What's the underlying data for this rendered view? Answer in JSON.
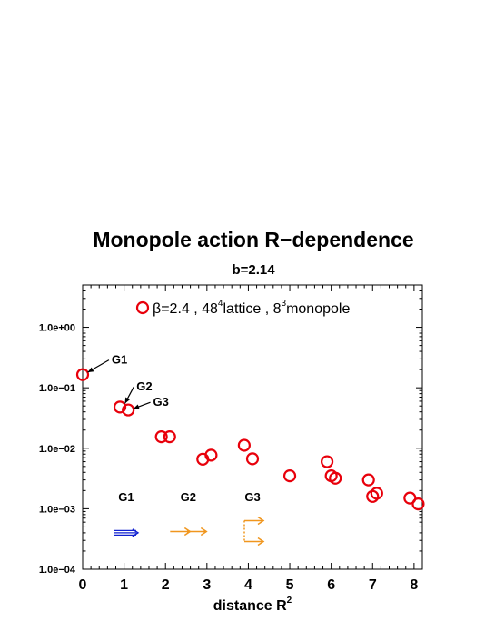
{
  "chart_data": {
    "type": "scatter",
    "title": "Monopole action R−dependence",
    "subtitle": "b=2.14",
    "xlabel": "distance R",
    "xlabel_sup": "2",
    "ylabel": "",
    "x_scale": "linear",
    "y_scale": "log",
    "xlim": [
      0,
      8.2
    ],
    "ylim": [
      0.0001,
      5
    ],
    "x_ticks": [
      0,
      1,
      2,
      3,
      4,
      5,
      6,
      7,
      8
    ],
    "x_tick_labels": [
      "0",
      "1",
      "2",
      "3",
      "4",
      "5",
      "6",
      "7",
      "8"
    ],
    "y_ticks": [
      0.0001,
      0.001,
      0.01,
      0.1,
      1
    ],
    "y_tick_labels": [
      "1.0e−04",
      "1.0e−03",
      "1.0e−02",
      "1.0e−01",
      "1.0e+00"
    ],
    "grid": false,
    "legend": {
      "position": "top",
      "parts": [
        "β=2.4 , 48",
        "4",
        "lattice , 8",
        "3",
        "monopole"
      ]
    },
    "series": [
      {
        "marker": "open-circle",
        "color": "#e8000b",
        "points": [
          {
            "x": 0.0,
            "y": 0.165
          },
          {
            "x": 0.9,
            "y": 0.048
          },
          {
            "x": 1.1,
            "y": 0.043
          },
          {
            "x": 1.9,
            "y": 0.0155
          },
          {
            "x": 2.1,
            "y": 0.0155
          },
          {
            "x": 2.9,
            "y": 0.0066
          },
          {
            "x": 3.1,
            "y": 0.0077
          },
          {
            "x": 3.9,
            "y": 0.0112
          },
          {
            "x": 4.1,
            "y": 0.0067
          },
          {
            "x": 5.0,
            "y": 0.0035
          },
          {
            "x": 5.9,
            "y": 0.006
          },
          {
            "x": 6.0,
            "y": 0.0035
          },
          {
            "x": 6.1,
            "y": 0.0032
          },
          {
            "x": 6.9,
            "y": 0.003
          },
          {
            "x": 7.0,
            "y": 0.0016
          },
          {
            "x": 7.1,
            "y": 0.0018
          },
          {
            "x": 7.9,
            "y": 0.0015
          },
          {
            "x": 8.1,
            "y": 0.0012
          }
        ]
      }
    ],
    "annotations": [
      {
        "text": "G1",
        "x": 0.7,
        "y": 0.25,
        "arrow_to": {
          "x": 0.12,
          "y": 0.18
        }
      },
      {
        "text": "G2",
        "x": 1.3,
        "y": 0.09,
        "arrow_to": {
          "x": 1.02,
          "y": 0.055
        }
      },
      {
        "text": "G3",
        "x": 1.7,
        "y": 0.05,
        "arrow_to": {
          "x": 1.22,
          "y": 0.045
        }
      }
    ],
    "inset_legend": [
      {
        "label": "G1",
        "color": "#1020d0",
        "style": "double-arrow",
        "x": 1.05,
        "label_y": 0.0012,
        "y": 0.0004
      },
      {
        "label": "G2",
        "color": "#f0961e",
        "style": "arrow",
        "x": 2.55,
        "label_y": 0.0012,
        "y": 0.00042
      },
      {
        "label": "G3",
        "color": "#f0961e",
        "style": "branched-arrow",
        "x": 4.1,
        "label_y": 0.0012,
        "y": 0.00042
      }
    ]
  }
}
